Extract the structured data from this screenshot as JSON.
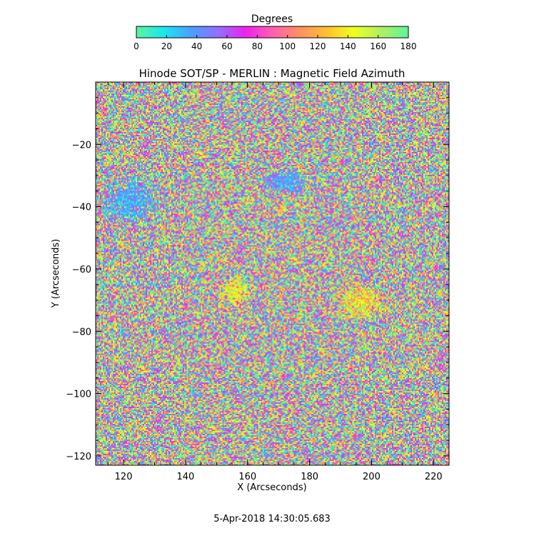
{
  "chart_data": {
    "type": "heatmap",
    "title": "Hinode SOT/SP - MERLIN : Magnetic Field Azimuth",
    "xlabel": "X (Arcseconds)",
    "ylabel": "Y (Arcseconds)",
    "xlim": [
      111,
      225
    ],
    "ylim": [
      -123,
      0
    ],
    "xticks": [
      120,
      140,
      160,
      180,
      200,
      220
    ],
    "yticks": [
      -20,
      -40,
      -60,
      -80,
      -100,
      -120
    ],
    "colorbar": {
      "label": "Degrees",
      "range": [
        0,
        180
      ],
      "ticks": [
        0,
        20,
        40,
        60,
        80,
        100,
        120,
        140,
        160,
        180
      ],
      "colormap": [
        "#5cf59a",
        "#18e8f0",
        "#4aa0ff",
        "#9070ff",
        "#f020f0",
        "#ff5fb0",
        "#ff9060",
        "#ffc030",
        "#f0ff20",
        "#b0f060",
        "#5cf59a"
      ]
    },
    "pattern": "noisy per-pixel azimuth in degrees (0-180) across the full field, with several smoother coherent patches",
    "coherent_regions": [
      {
        "x": [
          112,
          132
        ],
        "y": [
          -46,
          -30
        ],
        "dominant_azimuth_range": [
          10,
          60
        ]
      },
      {
        "x": [
          150,
          162
        ],
        "y": [
          -72,
          -62
        ],
        "dominant_azimuth_range": [
          120,
          170
        ]
      },
      {
        "x": [
          187,
          206
        ],
        "y": [
          -78,
          -64
        ],
        "dominant_azimuth_range": [
          100,
          170
        ]
      },
      {
        "x": [
          165,
          180
        ],
        "y": [
          -36,
          -28
        ],
        "dominant_azimuth_range": [
          20,
          60
        ]
      }
    ]
  },
  "footer": {
    "timestamp": "5-Apr-2018 14:30:05.683"
  }
}
